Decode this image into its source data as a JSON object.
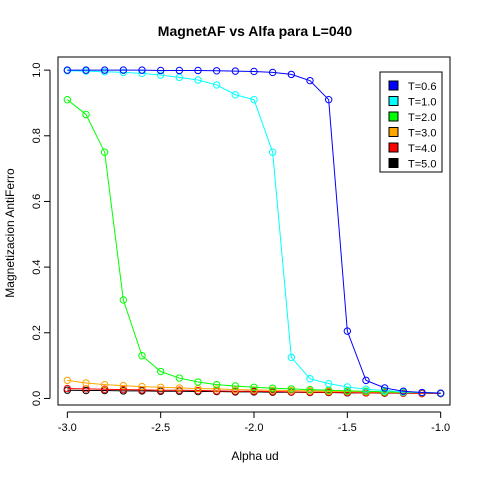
{
  "chart_data": {
    "type": "line",
    "title": "MagnetAF vs Alfa para L=040",
    "xlabel": "Alpha ud",
    "ylabel": "Magnetizacion AntiFerro",
    "xlim": [
      -3.05,
      -0.95
    ],
    "ylim": [
      -0.02,
      1.04
    ],
    "xticks": [
      -3.0,
      -2.5,
      -2.0,
      -1.5,
      -1.0
    ],
    "xtick_labels": [
      "-3.0",
      "-2.5",
      "-2.0",
      "-1.5",
      "-1.0"
    ],
    "yticks": [
      0.0,
      0.2,
      0.4,
      0.6,
      0.8,
      1.0
    ],
    "ytick_labels": [
      "0.0",
      "0.2",
      "0.4",
      "0.6",
      "0.8",
      "1.0"
    ],
    "legend_position": "top-right",
    "grid": false,
    "marker": "open-circle",
    "x": [
      -3.0,
      -2.9,
      -2.8,
      -2.7,
      -2.6,
      -2.5,
      -2.4,
      -2.3,
      -2.2,
      -2.1,
      -2.0,
      -1.9,
      -1.8,
      -1.7,
      -1.6,
      -1.5,
      -1.4,
      -1.3,
      -1.2,
      -1.1,
      -1.0
    ],
    "series": [
      {
        "name": "T=5.0",
        "color": "#000000",
        "values": [
          0.025,
          0.024,
          0.024,
          0.023,
          0.023,
          0.022,
          0.022,
          0.021,
          0.021,
          0.02,
          0.02,
          0.019,
          0.019,
          0.018,
          0.018,
          0.017,
          0.017,
          0.016,
          0.016,
          0.015,
          0.015
        ]
      },
      {
        "name": "T=4.0",
        "color": "#ff0000",
        "values": [
          0.03,
          0.029,
          0.028,
          0.027,
          0.026,
          0.025,
          0.025,
          0.024,
          0.023,
          0.022,
          0.022,
          0.021,
          0.02,
          0.019,
          0.019,
          0.018,
          0.017,
          0.017,
          0.016,
          0.015,
          0.015
        ]
      },
      {
        "name": "T=3.0",
        "color": "#ffa500",
        "values": [
          0.055,
          0.047,
          0.042,
          0.039,
          0.036,
          0.034,
          0.032,
          0.03,
          0.029,
          0.027,
          0.026,
          0.025,
          0.024,
          0.023,
          0.022,
          0.021,
          0.02,
          0.019,
          0.018,
          0.017,
          0.016
        ]
      },
      {
        "name": "T=2.0",
        "color": "#00ff00",
        "values": [
          0.91,
          0.865,
          0.75,
          0.3,
          0.13,
          0.082,
          0.062,
          0.05,
          0.042,
          0.038,
          0.034,
          0.031,
          0.029,
          0.027,
          0.025,
          0.023,
          0.022,
          0.02,
          0.019,
          0.018,
          0.016
        ]
      },
      {
        "name": "T=1.0",
        "color": "#00ffff",
        "values": [
          0.998,
          0.997,
          0.995,
          0.993,
          0.99,
          0.985,
          0.978,
          0.97,
          0.955,
          0.925,
          0.91,
          0.75,
          0.125,
          0.06,
          0.045,
          0.035,
          0.028,
          0.024,
          0.02,
          0.018,
          0.016
        ]
      },
      {
        "name": "T=0.6",
        "color": "#0000ff",
        "values": [
          1.0,
          1.0,
          1.0,
          1.0,
          1.0,
          0.999,
          0.999,
          0.999,
          0.998,
          0.997,
          0.996,
          0.993,
          0.987,
          0.968,
          0.91,
          0.205,
          0.055,
          0.032,
          0.022,
          0.018,
          0.016
        ]
      }
    ],
    "legend_order": [
      "T=0.6",
      "T=1.0",
      "T=2.0",
      "T=3.0",
      "T=4.0",
      "T=5.0"
    ]
  }
}
